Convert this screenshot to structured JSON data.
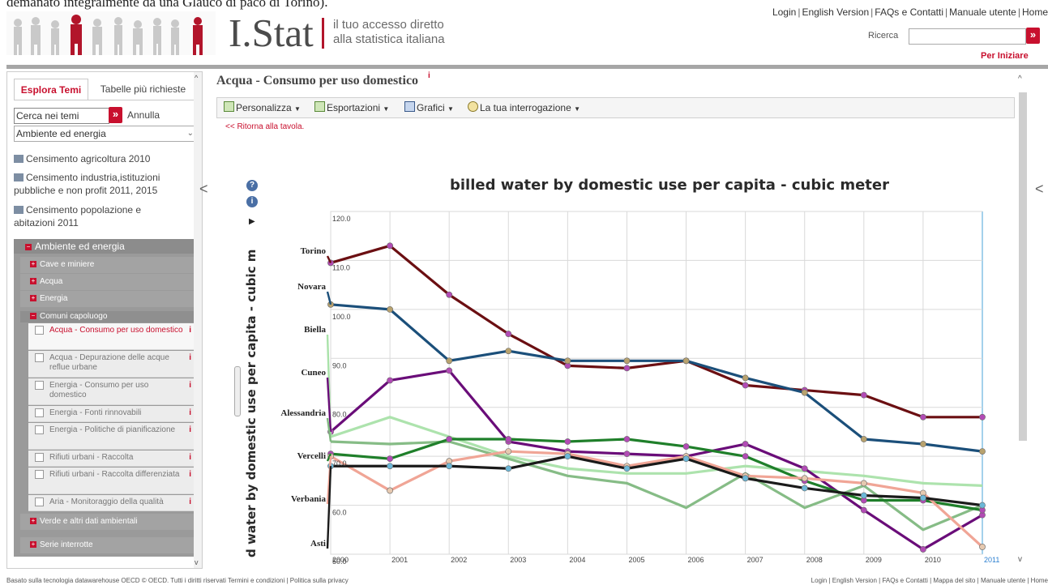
{
  "cut_text": "demanato integralmente da una Glauco di paco di Torino).",
  "header": {
    "logo_text": "I.Stat",
    "tagline_line1": "il tuo accesso diretto",
    "tagline_line2": "alla statistica italiana",
    "top_links": [
      "Login",
      "English Version",
      "FAQs e Contatti",
      "Manuale utente",
      "Home"
    ],
    "search_label": "Ricerca",
    "search_value": "",
    "search_go": "»",
    "per_iniziare": "Per Iniziare"
  },
  "sidebar": {
    "tabs": [
      "Esplora Temi",
      "Tabelle più richieste"
    ],
    "search_value": "Cerca nei temi",
    "search_go": "»",
    "annulla": "Annulla",
    "select_value": "Ambiente ed energia",
    "themes": [
      {
        "label": "Censimento agricoltura 2010"
      },
      {
        "label": "Censimento industria,istituzioni pubbliche e non profit 2011, 2015"
      },
      {
        "label": "Censimento popolazione e abitazioni 2011"
      }
    ],
    "tree_head": "Ambiente ed energia",
    "groups": [
      "Cave e miniere",
      "Acqua",
      "Energia"
    ],
    "subgroup": "Comuni capoluogo",
    "leaves": [
      {
        "label": "Acqua - Consumo per uso domestico",
        "info": "i"
      },
      {
        "label": "Acqua - Depurazione delle acque reflue urbane",
        "info": "i"
      },
      {
        "label": "Energia - Consumo per uso domestico",
        "info": "i"
      },
      {
        "label": "Energia - Fonti rinnovabili",
        "info": "i"
      },
      {
        "label": "Energia - Politiche di pianificazione",
        "info": "i"
      },
      {
        "label": "Rifiuti urbani - Raccolta",
        "info": "i"
      },
      {
        "label": "Rifiuti urbani - Raccolta differenziata",
        "info": "i"
      },
      {
        "label": "Aria - Monitoraggio della qualità",
        "info": "i"
      }
    ],
    "tail_groups": [
      "Verde e altri dati ambientali",
      "Serie interrotte"
    ]
  },
  "main": {
    "title": "Acqua - Consumo per uso domestico",
    "title_info": "i",
    "toolbar": [
      "Personalizza",
      "Esportazioni",
      "Grafici",
      "La tua interrogazione"
    ],
    "dropdown_arrow": "▼",
    "ritorna": "<< Ritorna alla tavola."
  },
  "chart_data": {
    "type": "line",
    "title": "billed water by domestic use per capita - cubic meter",
    "ylabel": "d water by domestic use per capita - cubic m",
    "x": [
      "2000",
      "2001",
      "2002",
      "2003",
      "2004",
      "2005",
      "2006",
      "2007",
      "2008",
      "2009",
      "2010",
      "2011"
    ],
    "ylim": [
      50,
      120
    ],
    "yticks": [
      "50.0",
      "60.0",
      "70.0",
      "80.0",
      "90.0",
      "100.0",
      "110.0",
      "120.0"
    ],
    "series": [
      {
        "name": "Torino",
        "color": "#6b0f12",
        "marker": "#b24bb5",
        "values": [
          109.5,
          113,
          103,
          95,
          88.5,
          88,
          89.5,
          84.5,
          83.5,
          82.5,
          78,
          78
        ]
      },
      {
        "name": "Novara",
        "color": "#1b4f7a",
        "marker": "#b8a26e",
        "values": [
          101,
          100,
          89.5,
          91.5,
          89.5,
          89.5,
          89.5,
          86,
          83,
          73.5,
          72.5,
          71
        ]
      },
      {
        "name": "Biella",
        "color": "#a9e2a9",
        "marker": null,
        "values": [
          74,
          78,
          74,
          70,
          67.5,
          66.5,
          66.5,
          68,
          67,
          66,
          64.5,
          64
        ]
      },
      {
        "name": "Cuneo",
        "color": "#6a0d79",
        "marker": "#b24bb5",
        "values": [
          75,
          85.5,
          87.5,
          73,
          71,
          70.5,
          70,
          72.5,
          67.5,
          59,
          51,
          58
        ]
      },
      {
        "name": "Alessandria",
        "color": "#7fb87f",
        "marker": null,
        "values": [
          73,
          72.5,
          73,
          69.5,
          66,
          64.5,
          59.5,
          66.5,
          59.5,
          64,
          55,
          60
        ]
      },
      {
        "name": "Vercelli",
        "color": "#1f7f2a",
        "marker": "#b24bb5",
        "values": [
          70.5,
          69.5,
          73.5,
          73.5,
          73,
          73.5,
          72,
          70,
          65,
          61,
          61,
          59
        ]
      },
      {
        "name": "Verbania",
        "color": "#f0a596",
        "marker": "#e6c9b0",
        "values": [
          70,
          63,
          69,
          71,
          70.5,
          68,
          70,
          66,
          65.5,
          64.5,
          62.5,
          51.5
        ]
      },
      {
        "name": "Asti",
        "color": "#1a1a1a",
        "marker": "#6cb8d8",
        "values": [
          68,
          68,
          68,
          67.5,
          70,
          67.5,
          69.5,
          65.5,
          63.5,
          62,
          61.5,
          60
        ]
      }
    ]
  },
  "footer": {
    "left": "Basato sulla tecnologia datawarehouse OECD © OECD. Tutti i diritti riservati Termini e condizioni  |  Politica sulla privacy",
    "right": "Login | English Version | FAQs e Contatti | Mappa del sito | Manuale utente | Home"
  }
}
